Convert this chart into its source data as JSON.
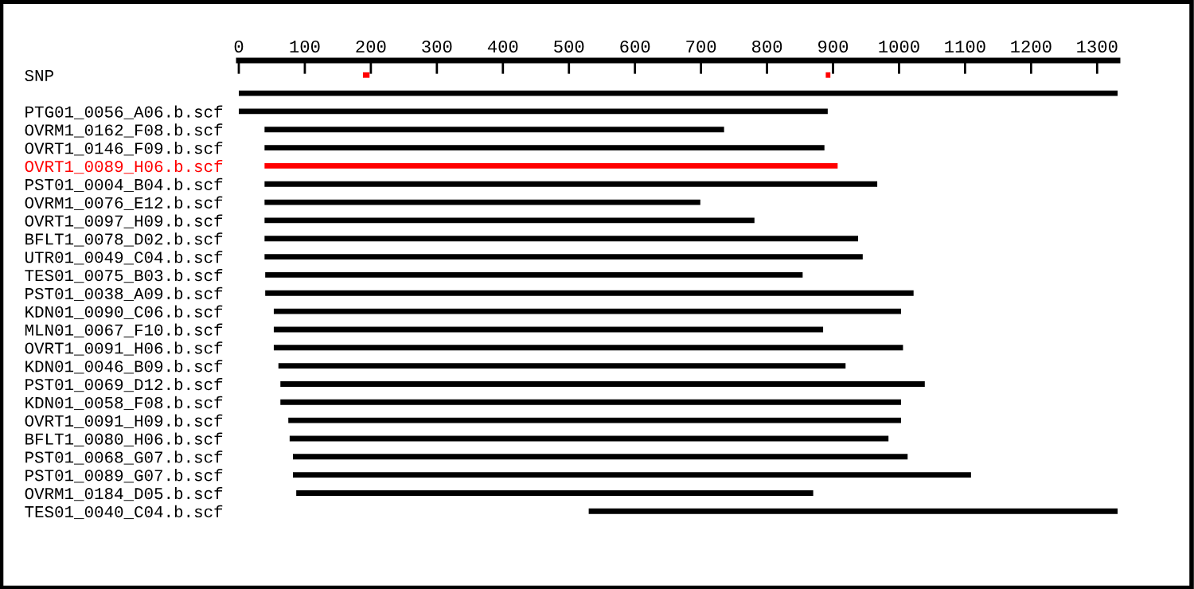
{
  "chart_data": {
    "type": "bar",
    "orientation": "horizontal",
    "categories": [
      "SNP",
      null,
      "PTG01_0056_A06.b.scf",
      "OVRM1_0162_F08.b.scf",
      "OVRT1_0146_F09.b.scf",
      "OVRT1_0089_H06.b.scf",
      "PST01_0004_B04.b.scf",
      "OVRM1_0076_E12.b.scf",
      "OVRT1_0097_H09.b.scf",
      "BFLT1_0078_D02.b.scf",
      "UTR01_0049_C04.b.scf",
      "TES01_0075_B03.b.scf",
      "PST01_0038_A09.b.scf",
      "KDN01_0090_C06.b.scf",
      "MLN01_0067_F10.b.scf",
      "OVRT1_0091_H06.b.scf",
      "KDN01_0046_B09.b.scf",
      "PST01_0069_D12.b.scf",
      "KDN01_0058_F08.b.scf",
      "OVRT1_0091_H09.b.scf",
      "BFLT1_0080_H06.b.scf",
      "PST01_0068_G07.b.scf",
      "PST01_0089_G07.b.scf",
      "OVRM1_0184_D05.b.scf",
      "TES01_0040_C04.b.scf"
    ],
    "series": [
      {
        "values": [
          null,
          1331,
          892,
          696,
          848,
          868,
          928,
          660,
          742,
          899,
          906,
          814,
          982,
          950,
          832,
          953,
          859,
          976,
          940,
          928,
          907,
          931,
          1027,
          783,
          801
        ],
        "base": [
          null,
          0,
          0,
          39,
          39,
          39,
          39,
          39,
          39,
          39,
          39,
          40,
          40,
          53,
          53,
          53,
          60,
          63,
          63,
          75,
          77,
          82,
          82,
          87,
          530
        ],
        "colors": [
          "#000000",
          "#000000",
          "#000000",
          "#000000",
          "#000000",
          "#ff0000",
          "#000000",
          "#000000",
          "#000000",
          "#000000",
          "#000000",
          "#000000",
          "#000000",
          "#000000",
          "#000000",
          "#000000",
          "#000000",
          "#000000",
          "#000000",
          "#000000",
          "#000000",
          "#000000",
          "#000000",
          "#000000",
          "#000000"
        ]
      },
      {
        "color": "#ff0000",
        "values": [
          10,
          null,
          null,
          null,
          null,
          null,
          null,
          null,
          null,
          null,
          null,
          null,
          null,
          null,
          null,
          null,
          null,
          null,
          null,
          null,
          null,
          null,
          null,
          null,
          null
        ],
        "base": [
          188,
          null,
          null,
          null,
          null,
          null,
          null,
          null,
          null,
          null,
          null,
          null,
          null,
          null,
          null,
          null,
          null,
          null,
          null,
          null,
          null,
          null,
          null,
          null,
          null
        ]
      },
      {
        "color": "#ff0000",
        "values": [
          7,
          null,
          null,
          null,
          null,
          null,
          null,
          null,
          null,
          null,
          null,
          null,
          null,
          null,
          null,
          null,
          null,
          null,
          null,
          null,
          null,
          null,
          null,
          null,
          null
        ],
        "base": [
          889,
          null,
          null,
          null,
          null,
          null,
          null,
          null,
          null,
          null,
          null,
          null,
          null,
          null,
          null,
          null,
          null,
          null,
          null,
          null,
          null,
          null,
          null,
          null,
          null
        ]
      }
    ],
    "xlim": [
      0,
      1331
    ],
    "xticks": [
      0,
      100,
      200,
      300,
      400,
      500,
      600,
      700,
      800,
      900,
      1000,
      1100,
      1200,
      1300
    ],
    "grid": false,
    "legend": false
  }
}
